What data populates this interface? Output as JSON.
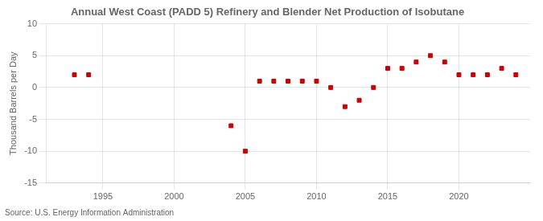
{
  "chart_data": {
    "type": "scatter",
    "title": "Annual West Coast (PADD 5) Refinery and Blender Net Production of Isobutane",
    "y_label": "Thousand Barrels per Day",
    "annotations": [
      "Source: U.S. Energy Information Administration"
    ],
    "x": [
      1993,
      1994,
      2004,
      2005,
      2006,
      2007,
      2008,
      2009,
      2010,
      2011,
      2012,
      2013,
      2014,
      2015,
      2016,
      2017,
      2018,
      2019,
      2020,
      2021,
      2022,
      2023,
      2024
    ],
    "values": [
      2.0,
      2.0,
      -6.0,
      -10.0,
      1.0,
      1.0,
      1.0,
      1.0,
      1.0,
      0.0,
      -3.0,
      -2.0,
      0.0,
      3.0,
      3.0,
      4.0,
      5.0,
      4.0,
      2.0,
      2.0,
      2.0,
      3.0,
      2.0
    ],
    "color": "#cc0000",
    "marker": "square",
    "xlim": [
      1991,
      2025
    ],
    "xticks": [
      1995,
      2000,
      2005,
      2010,
      2015,
      2020
    ],
    "ylim": [
      -15,
      10
    ],
    "yticks": [
      -15,
      -10,
      -5,
      0,
      5,
      10
    ],
    "grid": true
  }
}
